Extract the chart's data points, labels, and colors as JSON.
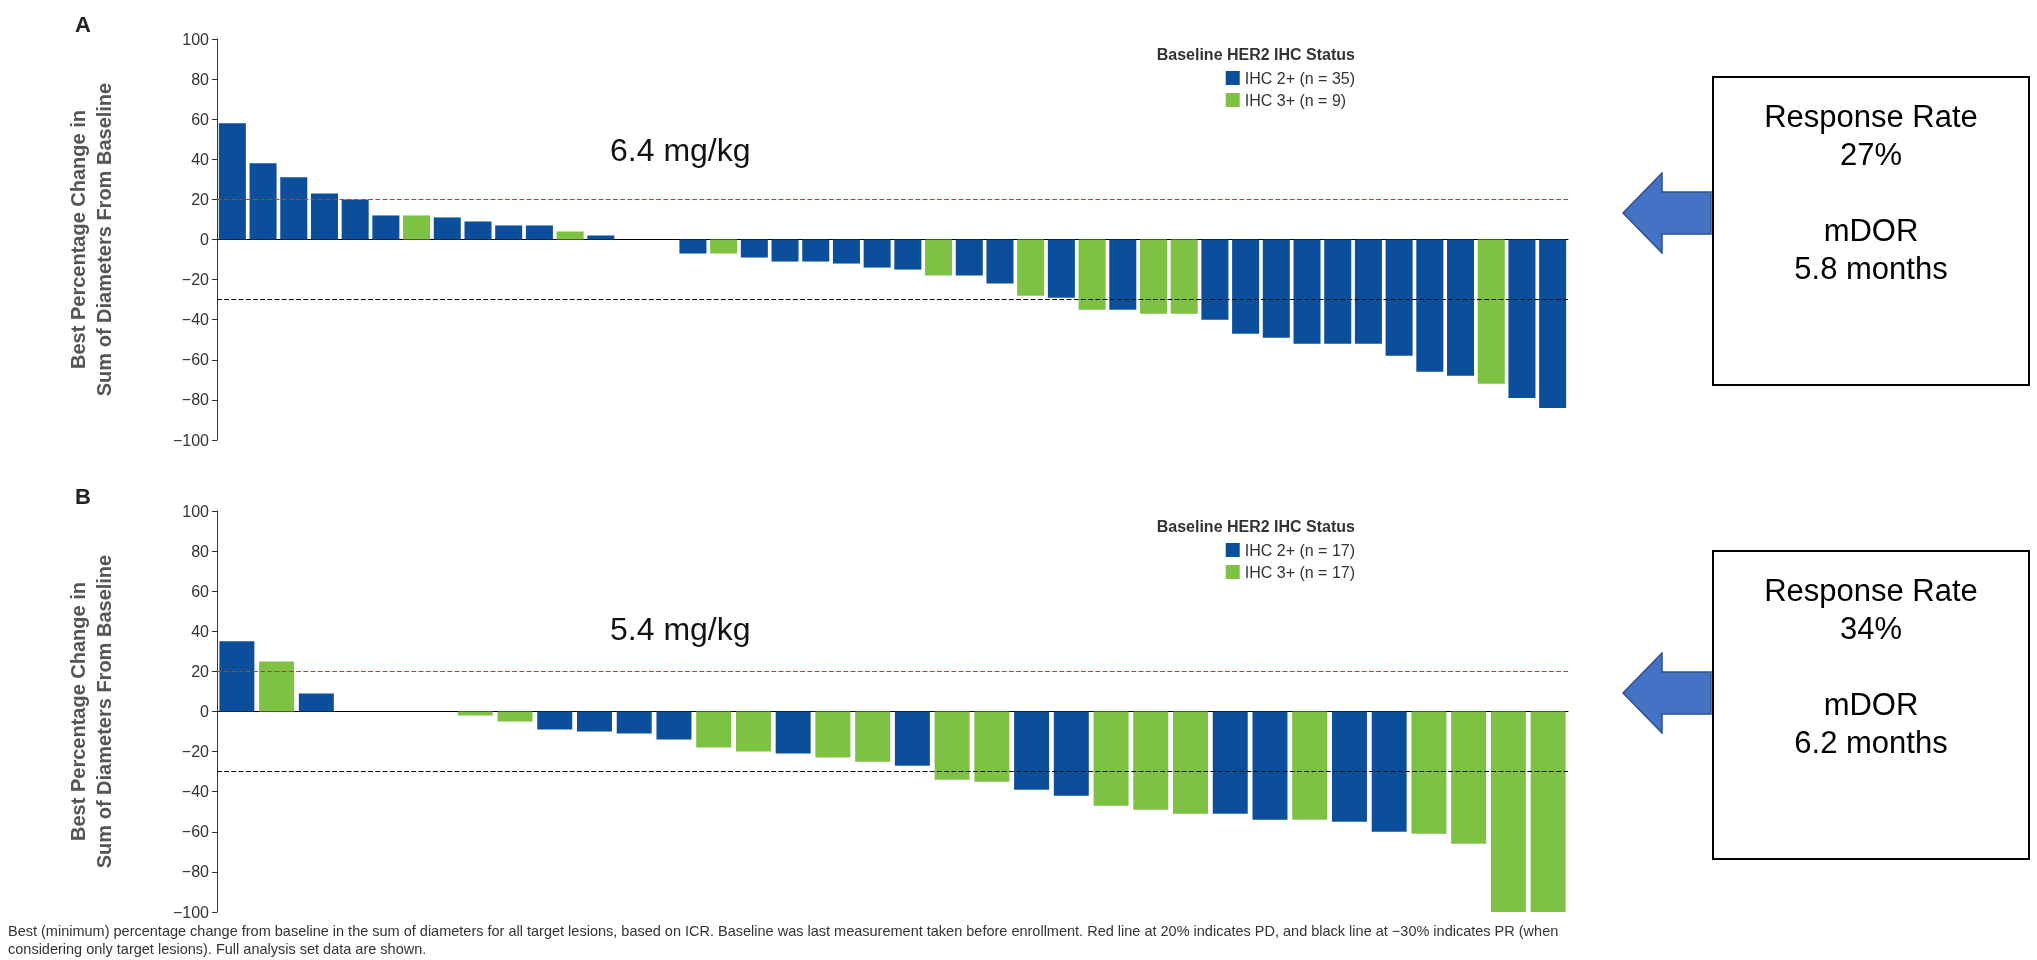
{
  "chart_data": [
    {
      "type": "bar",
      "title": "A",
      "ylabel": "Best Percentage Change in\nSum of Diameters From Baseline",
      "legend_title": "Baseline HER2 IHC Status",
      "categories": [
        null,
        null,
        null,
        null,
        null,
        null,
        null,
        null,
        null,
        null,
        null,
        null,
        null,
        null,
        null,
        null,
        null,
        null,
        null,
        null,
        null,
        null,
        null,
        null,
        null,
        null,
        null,
        null,
        null,
        null,
        null,
        null,
        null,
        null,
        null,
        null,
        null,
        null,
        null,
        null,
        null,
        null,
        null,
        null
      ],
      "series": [
        {
          "name": "IHC 2+ (n = 35)",
          "color": "#0b4f9c",
          "values": [
            58,
            38,
            31,
            23,
            20,
            12,
            null,
            11,
            9,
            7,
            7,
            null,
            2,
            0,
            0,
            -7,
            null,
            -9,
            -11,
            -11,
            -12,
            -14,
            -15,
            null,
            -18,
            -22,
            null,
            -29,
            null,
            -35,
            null,
            null,
            -40,
            -47,
            -49,
            -52,
            -52,
            -52,
            -58,
            -66,
            -68,
            null,
            -79,
            -84
          ]
        },
        {
          "name": "IHC 3+ (n = 9)",
          "color": "#7dc242",
          "values": [
            null,
            null,
            null,
            null,
            null,
            null,
            12,
            null,
            null,
            null,
            null,
            4,
            null,
            null,
            null,
            null,
            -7,
            null,
            null,
            null,
            null,
            null,
            null,
            -18,
            null,
            null,
            -28,
            null,
            -35,
            null,
            -37,
            -37,
            null,
            null,
            null,
            null,
            null,
            null,
            null,
            null,
            null,
            -72,
            null,
            null
          ]
        }
      ],
      "ylim": [
        -100,
        100
      ],
      "yticks": [
        -100,
        -80,
        -60,
        -40,
        -20,
        0,
        20,
        40,
        60,
        80,
        100
      ],
      "grid": false,
      "legend": "top right",
      "ref_lines": [
        {
          "axis": "y",
          "value": 20,
          "color": "#c0392b",
          "line_style": "dashed"
        },
        {
          "axis": "y",
          "value": -30,
          "color": "#000000",
          "line_style": "dashed"
        }
      ],
      "annotations": [
        "6.4 mg/kg",
        "Response Rate\n27%\n\nmDOR\n5.8 months"
      ]
    },
    {
      "type": "bar",
      "title": "B",
      "ylabel": "Best Percentage Change in\nSum of Diameters From Baseline",
      "legend_title": "Baseline HER2 IHC Status",
      "categories": [
        null,
        null,
        null,
        null,
        null,
        null,
        null,
        null,
        null,
        null,
        null,
        null,
        null,
        null,
        null,
        null,
        null,
        null,
        null,
        null,
        null,
        null,
        null,
        null,
        null,
        null,
        null,
        null,
        null,
        null,
        null,
        null,
        null,
        null
      ],
      "series": [
        {
          "name": "IHC 2+ (n = 17)",
          "color": "#0b4f9c",
          "values": [
            35,
            null,
            9,
            0,
            0,
            0,
            null,
            null,
            -9,
            -10,
            -11,
            -14,
            null,
            null,
            -21,
            null,
            null,
            -27,
            null,
            null,
            -39,
            -42,
            null,
            null,
            null,
            -51,
            -54,
            null,
            -55,
            -60,
            null,
            null,
            null,
            null
          ]
        },
        {
          "name": "IHC 3+ (n = 17)",
          "color": "#7dc242",
          "values": [
            null,
            25,
            null,
            null,
            null,
            null,
            -2,
            -5,
            null,
            null,
            null,
            null,
            -18,
            -20,
            null,
            -23,
            -25,
            null,
            -34,
            -35,
            null,
            null,
            -47,
            -49,
            -51,
            null,
            null,
            -54,
            null,
            null,
            -61,
            -66,
            -100,
            -100
          ]
        }
      ],
      "ylim": [
        -100,
        100
      ],
      "yticks": [
        -100,
        -80,
        -60,
        -40,
        -20,
        0,
        20,
        40,
        60,
        80,
        100
      ],
      "grid": false,
      "legend": "top right",
      "ref_lines": [
        {
          "axis": "y",
          "value": 20,
          "color": "#c0392b",
          "line_style": "dashed"
        },
        {
          "axis": "y",
          "value": -30,
          "color": "#000000",
          "line_style": "dashed"
        }
      ],
      "annotations": [
        "5.4 mg/kg",
        "Response Rate\n34%\n\nmDOR\n6.2 months",
        "Best (minimum) percentage change from baseline in the sum of diameters for all target lesions, based on ICR. Baseline was last measurement taken before enrollment. Red line at 20% indicates PD, and black line at −30% indicates PR (when considering only target lesions). Full analysis set data are shown."
      ]
    }
  ]
}
